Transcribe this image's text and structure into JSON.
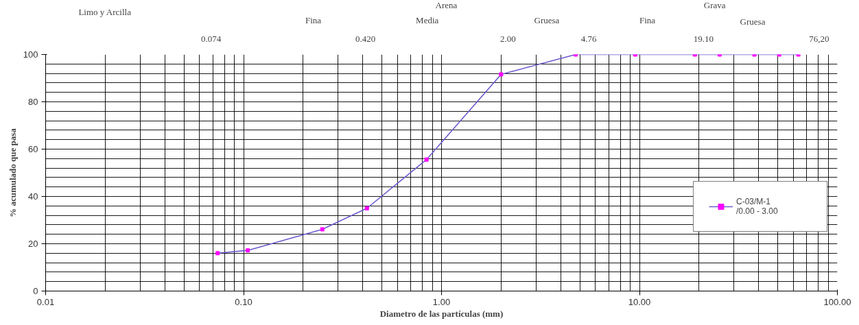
{
  "chart_data": {
    "type": "line",
    "xlabel": "Diametro de las partículas (mm)",
    "ylabel": "% acumulado que pasa",
    "annotations": [
      "Limo y Arcilla",
      "Arena",
      "Grava",
      "Fina",
      "Media",
      "Gruesa",
      "Fina",
      "Gruesa",
      "0.074",
      "0.420",
      "2.00",
      "4.76",
      "19.10",
      "76,20"
    ],
    "log": "x",
    "x": [
      0.074,
      0.105,
      0.25,
      0.42,
      0.84,
      2.0,
      4.76,
      9.52,
      19.05,
      25.4,
      38.1,
      50.8,
      63.5
    ],
    "series": [
      {
        "name": "C-03/M-1\n/0.00 - 3.00",
        "color": "#6a5acd",
        "values": [
          16.0,
          17.2,
          26.1,
          35.0,
          55.6,
          91.6,
          100,
          100,
          100,
          100,
          100,
          100,
          100
        ]
      }
    ],
    "marker": "square",
    "line_style": "solid",
    "grid": true,
    "legend": "right",
    "xlim": [
      0.01,
      100
    ],
    "ylim": [
      0,
      100
    ],
    "xticks": [
      {
        "value": 0.01,
        "label": "0.01"
      },
      {
        "value": 0.02,
        "label": null
      },
      {
        "value": 0.03,
        "label": null
      },
      {
        "value": 0.04,
        "label": null
      },
      {
        "value": 0.05,
        "label": null
      },
      {
        "value": 0.06,
        "label": null
      },
      {
        "value": 0.07,
        "label": null
      },
      {
        "value": 0.08,
        "label": null
      },
      {
        "value": 0.09,
        "label": null
      },
      {
        "value": 0.1,
        "label": "0.10"
      },
      {
        "value": 0.2,
        "label": null
      },
      {
        "value": 0.3,
        "label": null
      },
      {
        "value": 0.4,
        "label": null
      },
      {
        "value": 0.5,
        "label": null
      },
      {
        "value": 0.6,
        "label": null
      },
      {
        "value": 0.7,
        "label": null
      },
      {
        "value": 0.8,
        "label": null
      },
      {
        "value": 0.9,
        "label": null
      },
      {
        "value": 1,
        "label": "1.00"
      },
      {
        "value": 2,
        "label": null
      },
      {
        "value": 3,
        "label": null
      },
      {
        "value": 4,
        "label": null
      },
      {
        "value": 5,
        "label": null
      },
      {
        "value": 6,
        "label": null
      },
      {
        "value": 7,
        "label": null
      },
      {
        "value": 8,
        "label": null
      },
      {
        "value": 9,
        "label": null
      },
      {
        "value": 10,
        "label": "10.00"
      },
      {
        "value": 20,
        "label": null
      },
      {
        "value": 30,
        "label": null
      },
      {
        "value": 40,
        "label": null
      },
      {
        "value": 50,
        "label": null
      },
      {
        "value": 60,
        "label": null
      },
      {
        "value": 70,
        "label": null
      },
      {
        "value": 80,
        "label": null
      },
      {
        "value": 90,
        "label": null
      },
      {
        "value": 100,
        "label": "100.00"
      }
    ],
    "yticks": [
      0,
      {
        "value": 4,
        "label": null
      },
      {
        "value": 8,
        "label": null
      },
      {
        "value": 12,
        "label": null
      },
      {
        "value": 16,
        "label": null
      },
      20,
      {
        "value": 24,
        "label": null
      },
      {
        "value": 28,
        "label": null
      },
      {
        "value": 32,
        "label": null
      },
      {
        "value": 36,
        "label": null
      },
      40,
      {
        "value": 44,
        "label": null
      },
      {
        "value": 48,
        "label": null
      },
      {
        "value": 52,
        "label": null
      },
      {
        "value": 56,
        "label": null
      },
      60,
      {
        "value": 64,
        "label": null
      },
      {
        "value": 68,
        "label": null
      },
      {
        "value": 72,
        "label": null
      },
      {
        "value": 76,
        "label": null
      },
      80,
      {
        "value": 84,
        "label": null
      },
      {
        "value": 88,
        "label": null
      },
      {
        "value": 92,
        "label": null
      },
      {
        "value": 96,
        "label": null
      },
      100
    ]
  }
}
